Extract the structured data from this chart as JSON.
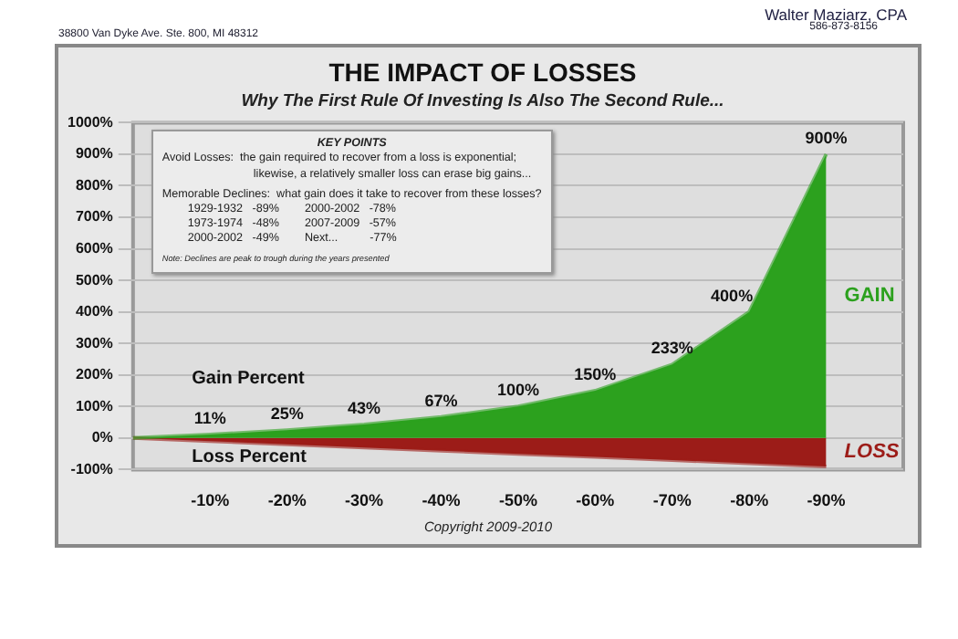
{
  "chart_data": {
    "type": "area",
    "title": "THE IMPACT OF LOSSES",
    "subtitle": "Why The First Rule Of Investing Is Also The Second Rule...",
    "categories": [
      null,
      "-10%",
      "-20%",
      "-30%",
      "-40%",
      "-50%",
      "-60%",
      "-70%",
      "-80%",
      "-90%",
      null
    ],
    "series": [
      {
        "name": "GAIN",
        "color": "#2ca11e",
        "values": [
          0,
          11,
          25,
          43,
          67,
          100,
          150,
          233,
          400,
          900,
          null
        ],
        "value_labels": [
          null,
          "11%",
          "25%",
          "43%",
          "67%",
          "100%",
          "150%",
          "233%",
          "400%",
          "900%",
          null
        ]
      },
      {
        "name": "LOSS",
        "color": "#9c1c18",
        "values": [
          0,
          -10,
          -20,
          -30,
          -40,
          -50,
          -60,
          -70,
          -80,
          -90,
          null
        ]
      }
    ],
    "ylim": [
      -100,
      1000
    ],
    "yticks": [
      {
        "value": -100,
        "label": "-100%"
      },
      {
        "value": 0,
        "label": "0%"
      },
      {
        "value": 100,
        "label": "100%"
      },
      {
        "value": 200,
        "label": "200%"
      },
      {
        "value": 300,
        "label": "300%"
      },
      {
        "value": 400,
        "label": "400%"
      },
      {
        "value": 500,
        "label": "500%"
      },
      {
        "value": 600,
        "label": "600%"
      },
      {
        "value": 700,
        "label": "700%"
      },
      {
        "value": 800,
        "label": "800%"
      },
      {
        "value": 900,
        "label": "900%"
      },
      {
        "value": 1000,
        "label": "1000%"
      }
    ],
    "grid": "y",
    "legend": false,
    "marker": "none",
    "annotations": [
      "Gain Percent",
      "Loss Percent",
      "KEY POINTS",
      "Avoid Losses:  the gain required to recover from a loss is exponential;",
      "likewise, a relatively smaller loss can erase big gains...",
      "Memorable Declines:  what gain does it take to recover from these losses?",
      "1929-1932   -89%        2000-2002   -78%",
      "1973-1974   -48%        2007-2009   -57%",
      "2000-2002   -49%        Next...          -77%",
      "Note: Declines are peak to trough during the years presented",
      "Copyright 2009-2010",
      "38800 Van Dyke Ave. Ste. 800, MI 48312",
      "Walter Maziarz, CPA",
      "586-873-8156"
    ]
  }
}
